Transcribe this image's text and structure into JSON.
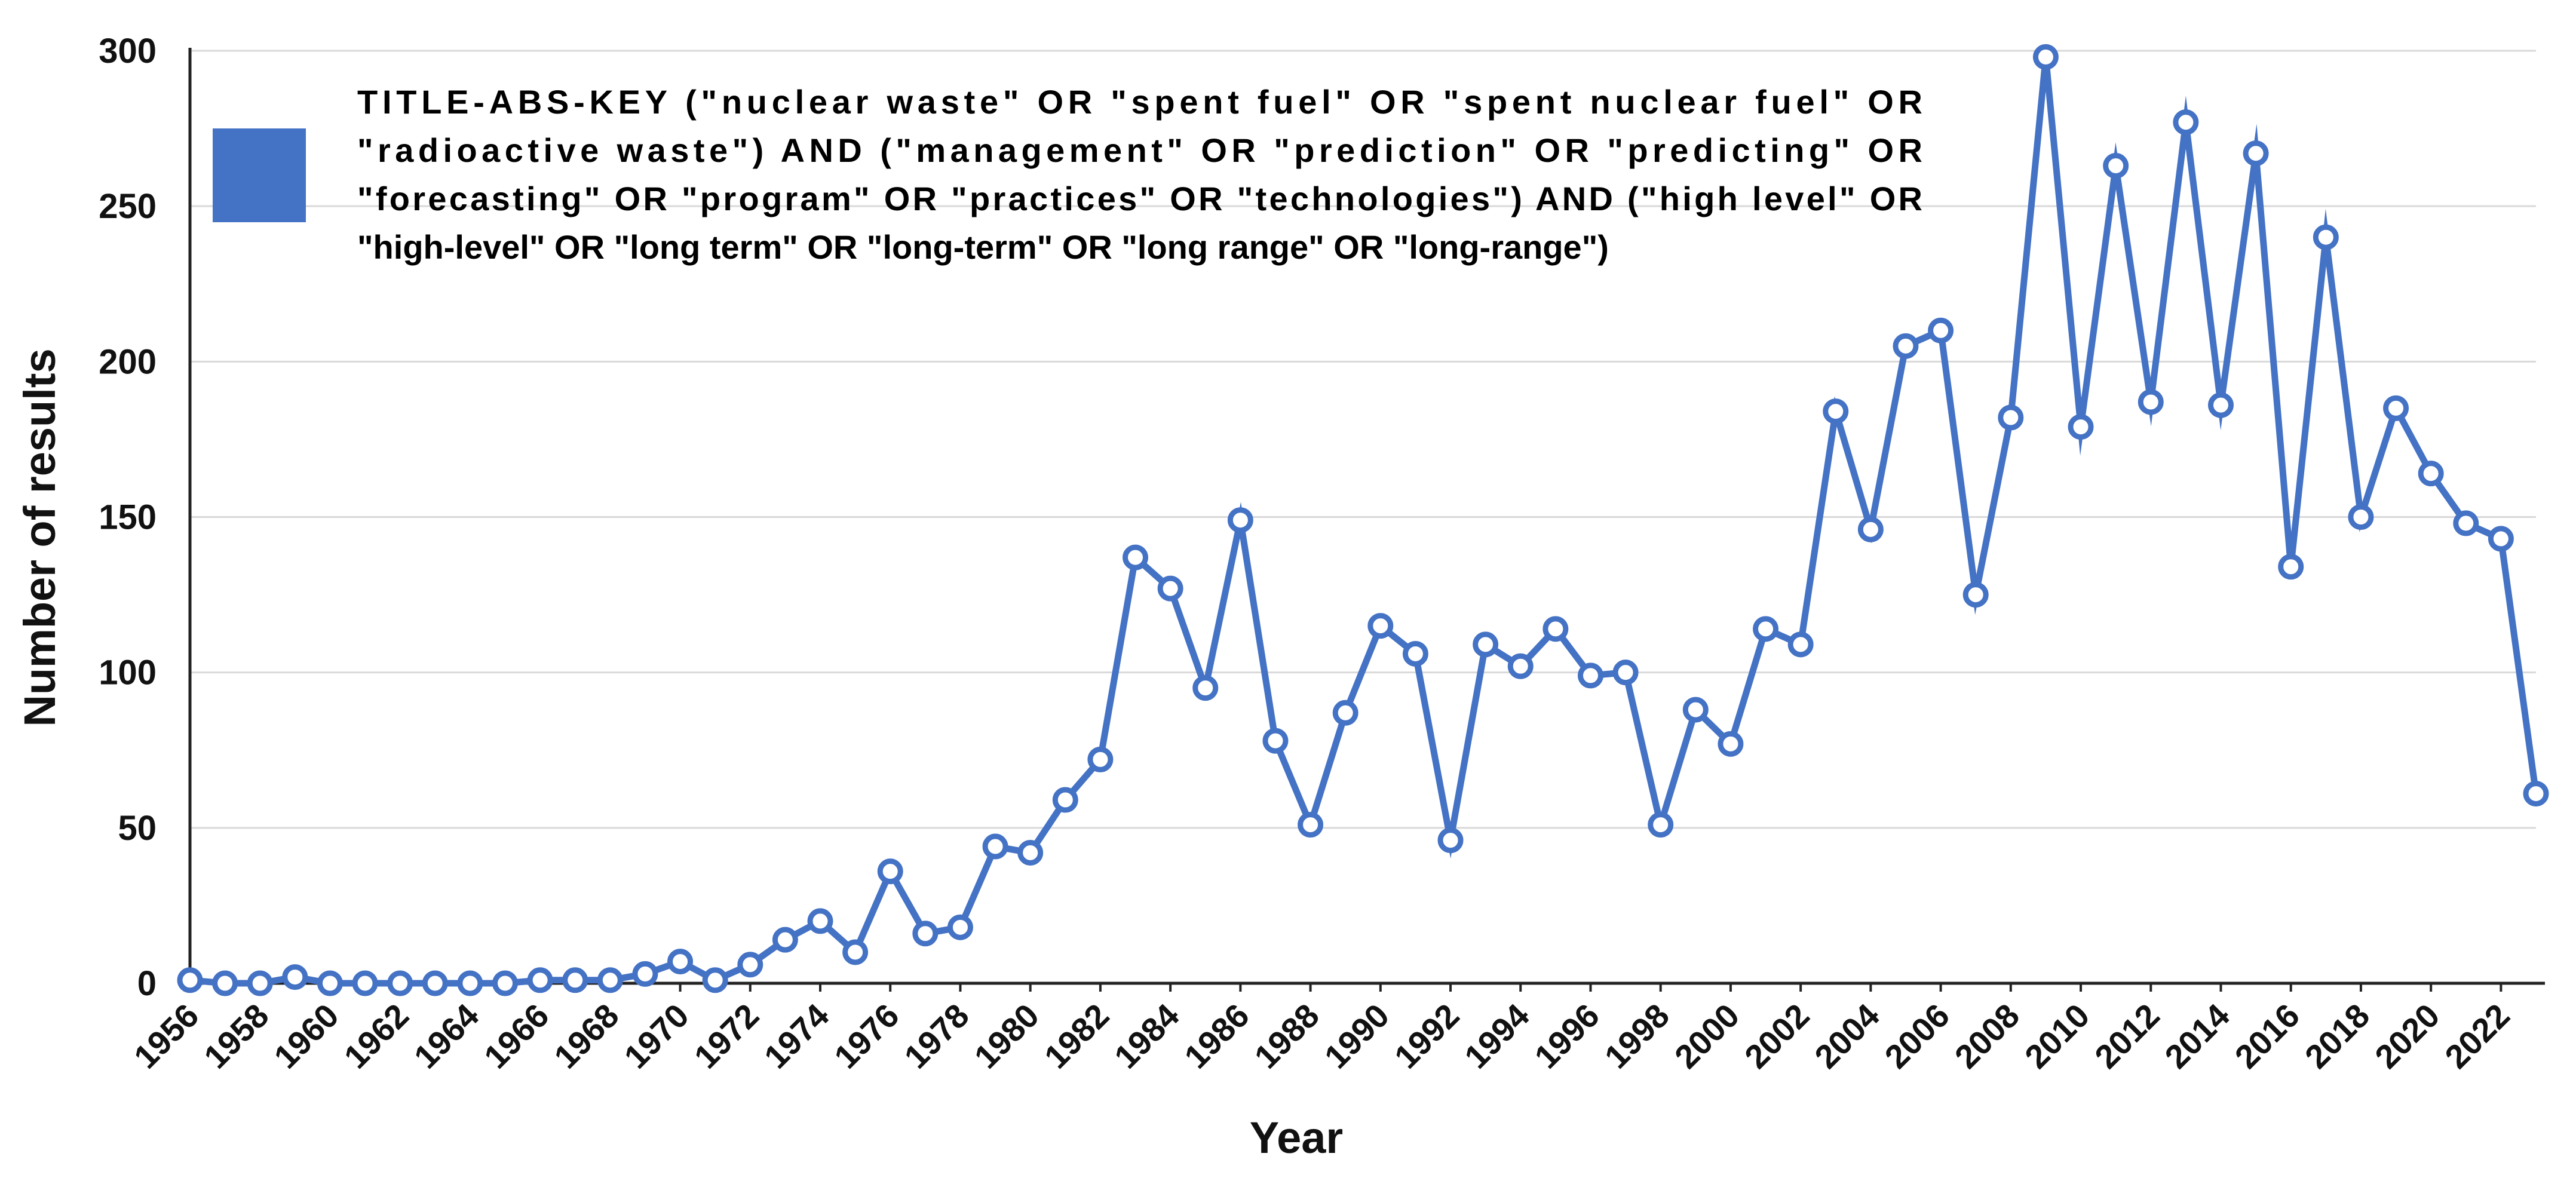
{
  "chart_data": {
    "type": "line",
    "title": "",
    "xlabel": "Year",
    "ylabel": "Number of results",
    "ylim": [
      0,
      300
    ],
    "yticks": [
      0,
      50,
      100,
      150,
      200,
      250,
      300
    ],
    "grid": true,
    "legend_position": "top-left",
    "series": [
      {
        "name": "TITLE-ABS-KEY (\"nuclear waste\" OR \"spent fuel\" OR \"spent nuclear fuel\" OR \"radioactive waste\") AND (\"management\" OR \"prediction\" OR \"predicting\" OR \"forecasting\" OR \"program\" OR \"practices\" OR \"technologies\") AND (\"high level\" OR \"high-level\" OR \"long term\" OR \"long-term\" OR \"long range\" OR \"long-range\")",
        "color": "#4472c4",
        "x": [
          1956,
          1957,
          1958,
          1959,
          1960,
          1961,
          1962,
          1963,
          1964,
          1965,
          1966,
          1967,
          1968,
          1969,
          1970,
          1971,
          1972,
          1973,
          1974,
          1975,
          1976,
          1977,
          1978,
          1979,
          1980,
          1981,
          1982,
          1983,
          1984,
          1985,
          1986,
          1987,
          1988,
          1989,
          1990,
          1991,
          1992,
          1993,
          1994,
          1995,
          1996,
          1997,
          1998,
          1999,
          2000,
          2001,
          2002,
          2003,
          2004,
          2005,
          2006,
          2007,
          2008,
          2009,
          2010,
          2011,
          2012,
          2013,
          2014,
          2015,
          2016,
          2017,
          2018,
          2019,
          2020,
          2021,
          2022,
          2023
        ],
        "values": [
          1,
          0,
          0,
          2,
          0,
          0,
          0,
          0,
          0,
          0,
          1,
          1,
          1,
          3,
          7,
          1,
          6,
          14,
          20,
          10,
          36,
          16,
          18,
          44,
          42,
          59,
          72,
          137,
          127,
          95,
          149,
          78,
          51,
          87,
          115,
          106,
          46,
          109,
          102,
          114,
          99,
          100,
          51,
          88,
          77,
          114,
          109,
          184,
          146,
          205,
          210,
          125,
          182,
          298,
          179,
          263,
          187,
          277,
          186,
          267,
          134,
          240,
          150,
          185,
          164,
          148,
          143,
          61
        ]
      }
    ],
    "xtick_labels": [
      "1956",
      "1958",
      "1960",
      "1962",
      "1964",
      "1966",
      "1968",
      "1970",
      "1972",
      "1974",
      "1976",
      "1978",
      "1980",
      "1982",
      "1984",
      "1986",
      "1988",
      "1990",
      "1992",
      "1994",
      "1996",
      "1998",
      "2000",
      "2002",
      "2004",
      "2006",
      "2008",
      "2010",
      "2012",
      "2014",
      "2016",
      "2018",
      "2020",
      "2022"
    ]
  },
  "legend": {
    "lines": [
      "TITLE-ABS-KEY (\"nuclear waste\" OR \"spent fuel\" OR \"spent nuclear fuel\" OR",
      "\"radioactive waste\") AND (\"management\" OR \"prediction\" OR \"predicting\" OR",
      "\"forecasting\" OR \"program\" OR \"practices\" OR \"technologies\") AND (\"high level\" OR",
      "\"high-level\" OR \"long term\" OR \"long-term\" OR \"long range\" OR \"long-range\")"
    ]
  }
}
